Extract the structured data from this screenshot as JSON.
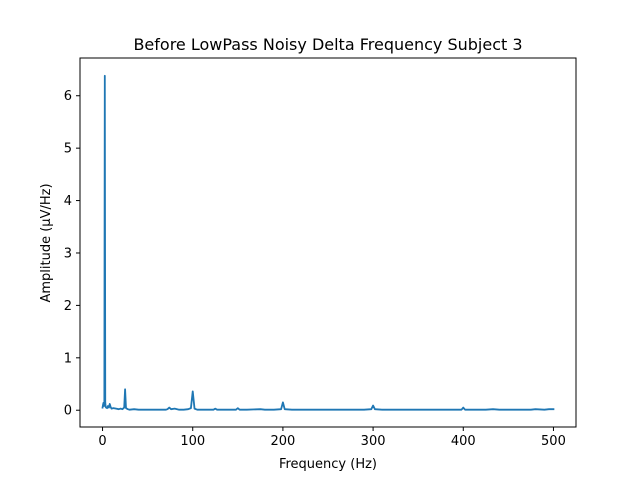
{
  "chart_data": {
    "type": "line",
    "title": "Before LowPass Noisy Delta Frequency Subject 3",
    "xlabel": "Frequency (Hz)",
    "ylabel": "Amplitude (μV/Hz)",
    "xlim": [
      -25,
      525
    ],
    "ylim": [
      -0.32,
      6.72
    ],
    "xticks": [
      0,
      100,
      200,
      300,
      400,
      500
    ],
    "yticks": [
      0,
      1,
      2,
      3,
      4,
      5,
      6
    ],
    "grid": false,
    "series": [
      {
        "color": "#1f77b4",
        "x": [
          0,
          0.5,
          1,
          1.5,
          2,
          2.5,
          3,
          3.5,
          4,
          5,
          6,
          7,
          8,
          9,
          10,
          12,
          15,
          18,
          20,
          22,
          24,
          25,
          26,
          28,
          30,
          35,
          40,
          45,
          50,
          55,
          60,
          65,
          70,
          72,
          74,
          76,
          80,
          85,
          90,
          95,
          98,
          100,
          102,
          105,
          110,
          115,
          120,
          123,
          125,
          127,
          130,
          140,
          148,
          150,
          152,
          160,
          175,
          180,
          190,
          198,
          200,
          202,
          210,
          225,
          240,
          250,
          260,
          275,
          290,
          298,
          300,
          302,
          310,
          325,
          340,
          350,
          360,
          375,
          390,
          398,
          400,
          402,
          410,
          425,
          433,
          440,
          450,
          460,
          475,
          480,
          490,
          495,
          500
        ],
        "y": [
          0.05,
          0.1,
          0.14,
          0.08,
          0.12,
          6.38,
          0.15,
          0.06,
          0.05,
          0.04,
          0.08,
          0.05,
          0.12,
          0.06,
          0.03,
          0.04,
          0.03,
          0.02,
          0.03,
          0.02,
          0.05,
          0.4,
          0.04,
          0.02,
          0.01,
          0.02,
          0.01,
          0.01,
          0.01,
          0.01,
          0.01,
          0.01,
          0.01,
          0.02,
          0.05,
          0.02,
          0.03,
          0.01,
          0.01,
          0.02,
          0.04,
          0.36,
          0.03,
          0.01,
          0.01,
          0.01,
          0.01,
          0.01,
          0.03,
          0.01,
          0.01,
          0.01,
          0.01,
          0.04,
          0.01,
          0.01,
          0.02,
          0.01,
          0.01,
          0.02,
          0.15,
          0.02,
          0.01,
          0.01,
          0.01,
          0.01,
          0.01,
          0.01,
          0.01,
          0.02,
          0.09,
          0.02,
          0.01,
          0.01,
          0.01,
          0.01,
          0.01,
          0.01,
          0.01,
          0.01,
          0.05,
          0.01,
          0.01,
          0.01,
          0.02,
          0.01,
          0.01,
          0.01,
          0.01,
          0.02,
          0.01,
          0.02,
          0.02
        ]
      }
    ]
  }
}
